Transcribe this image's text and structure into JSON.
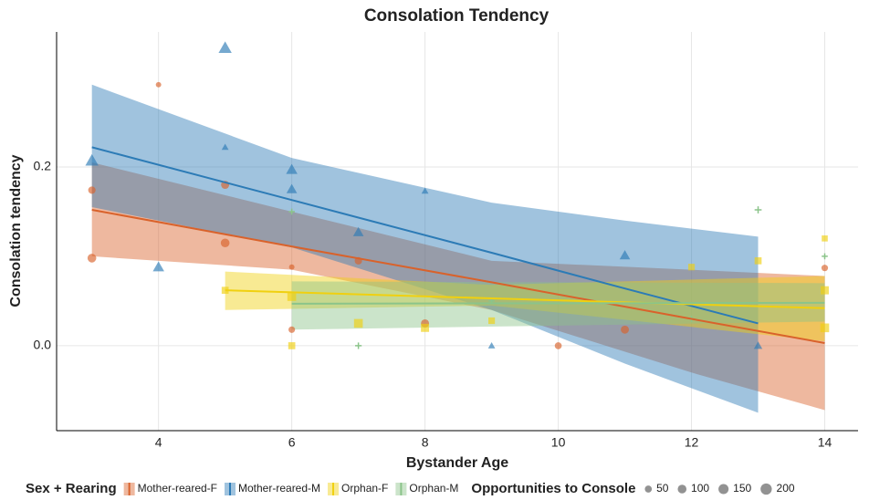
{
  "chart_data": {
    "type": "scatter",
    "title": "Consolation Tendency",
    "x_label": "Bystander Age",
    "y_label": "Consolation tendency",
    "xlim": [
      2.47,
      14.5
    ],
    "ylim": [
      -0.095,
      0.351
    ],
    "xticks": [
      4,
      6,
      8,
      10,
      12,
      14
    ],
    "yticks": [
      {
        "value": 0,
        "label": "0.0"
      },
      0.2
    ],
    "grid": true,
    "legend_title": "Sex + Rearing",
    "size_legend_title": "Opportunities to Console",
    "size_legend": [
      50,
      100,
      150,
      200
    ],
    "legend_position": "bottom",
    "series": [
      {
        "name": "Mother-reared-F",
        "color": "#d9622b",
        "shape": "circle",
        "x": [
          3,
          3,
          4,
          5,
          5,
          6,
          6,
          7,
          8,
          10,
          11,
          14
        ],
        "values": [
          0.098,
          0.174,
          0.292,
          0.115,
          0.18,
          0.088,
          0.018,
          0.095,
          0.025,
          0,
          0.018,
          0.087
        ],
        "sizes": [
          100,
          60,
          20,
          100,
          80,
          20,
          40,
          60,
          80,
          50,
          80,
          40
        ],
        "fit": {
          "x": [
            3,
            6,
            9,
            12,
            14
          ],
          "values": [
            0.152,
            0.111,
            0.071,
            0.03,
            0.003
          ],
          "upper": [
            0.205,
            0.15,
            0.095,
            0.085,
            0.078
          ],
          "lower": [
            0.1,
            0.085,
            0.04,
            -0.03,
            -0.072
          ]
        }
      },
      {
        "name": "Mother-reared-M",
        "color": "#2c7bb6",
        "shape": "triangle",
        "x": [
          3,
          4,
          5,
          5,
          6,
          6,
          7,
          8,
          9,
          11,
          13
        ],
        "values": [
          0.207,
          0.088,
          0.333,
          0.222,
          0.197,
          0.175,
          0.127,
          0.173,
          0,
          0.101,
          0
        ],
        "sizes": [
          150,
          100,
          150,
          20,
          100,
          80,
          80,
          20,
          20,
          80,
          40
        ],
        "fit": {
          "x": [
            3,
            6,
            9,
            11,
            13
          ],
          "values": [
            0.222,
            0.163,
            0.104,
            0.064,
            0.025
          ],
          "upper": [
            0.292,
            0.21,
            0.16,
            0.14,
            0.122
          ],
          "lower": [
            0.155,
            0.11,
            0.04,
            -0.02,
            -0.075
          ]
        }
      },
      {
        "name": "Orphan-F",
        "color": "#f0d010",
        "shape": "square",
        "x": [
          5,
          6,
          6,
          7,
          8,
          9,
          12,
          13,
          14,
          14,
          14
        ],
        "values": [
          0.062,
          0,
          0.055,
          0.025,
          0.02,
          0.028,
          0.088,
          0.095,
          0.12,
          0.062,
          0.02
        ],
        "sizes": [
          50,
          50,
          100,
          100,
          80,
          40,
          40,
          50,
          30,
          80,
          100
        ],
        "fit": {
          "x": [
            5,
            9,
            14
          ],
          "values": [
            0.062,
            0.053,
            0.042
          ],
          "upper": [
            0.083,
            0.068,
            0.078
          ],
          "lower": [
            0.04,
            0.045,
            0.005
          ]
        }
      },
      {
        "name": "Orphan-M",
        "color": "#8bc48a",
        "shape": "plus",
        "x": [
          6,
          7,
          9,
          12,
          13,
          14
        ],
        "values": [
          0.15,
          0,
          0.05,
          0.03,
          0.152,
          0.1
        ],
        "sizes": [
          30,
          40,
          30,
          30,
          50,
          30
        ],
        "fit": {
          "x": [
            6,
            14
          ],
          "values": [
            0.047,
            0.048
          ],
          "upper": [
            0.072,
            0.07
          ],
          "lower": [
            0.018,
            0.027
          ]
        }
      }
    ]
  }
}
